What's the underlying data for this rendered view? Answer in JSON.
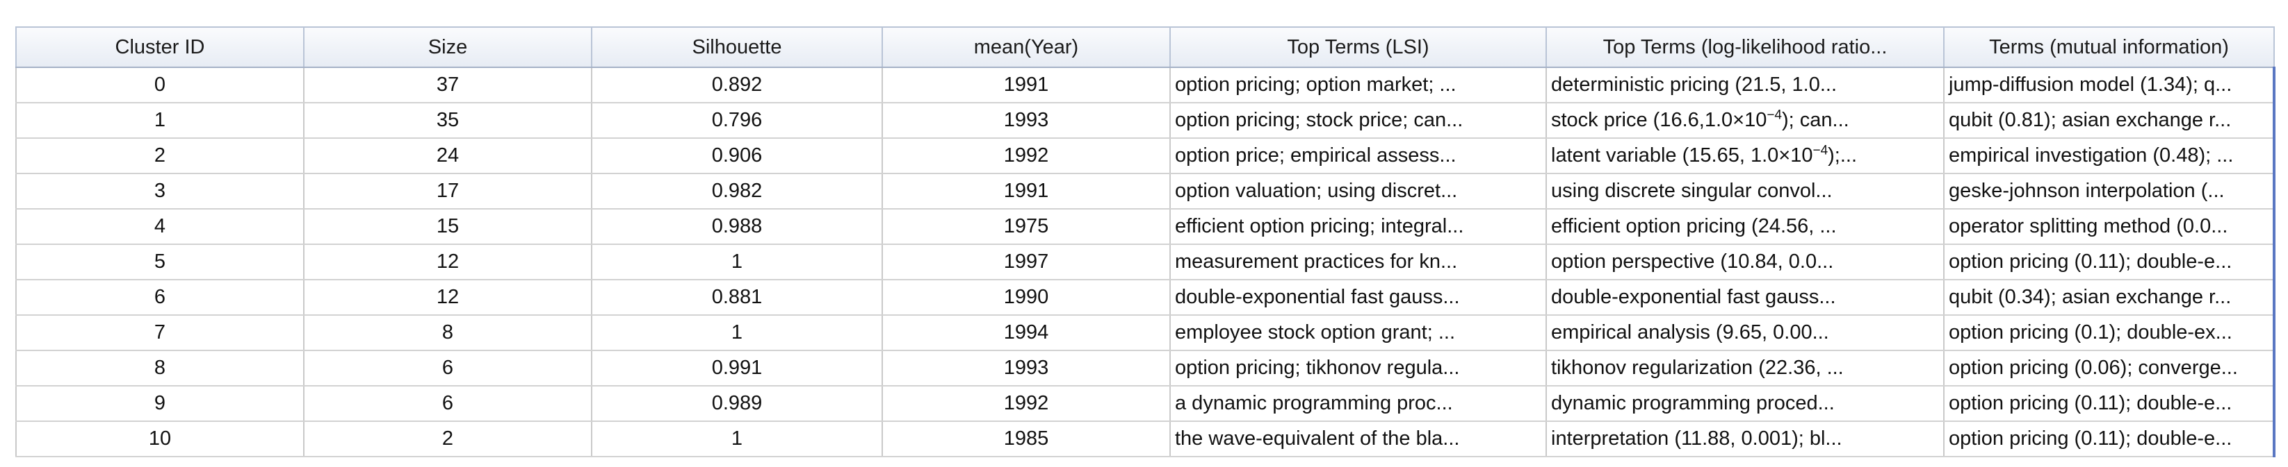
{
  "columns": [
    "Cluster ID",
    "Size",
    "Silhouette",
    "mean(Year)",
    "Top Terms (LSI)",
    "Top Terms (log-likelihood ratio...",
    "Terms (mutual information)"
  ],
  "rows": [
    {
      "id": "0",
      "size": "37",
      "silhouette": "0.892",
      "year": "1991",
      "lsi": "option pricing; option market; ...",
      "llr": "deterministic pricing (21.5, 1.0...",
      "mi": "jump-diffusion model (1.34); q..."
    },
    {
      "id": "1",
      "size": "35",
      "silhouette": "0.796",
      "year": "1993",
      "lsi": "option pricing; stock price; can...",
      "llr_pre": "stock price (16.6,1.0×10",
      "llr_sup": "−4",
      "llr_post": "); can...",
      "mi": "qubit (0.81); asian exchange r..."
    },
    {
      "id": "2",
      "size": "24",
      "silhouette": "0.906",
      "year": "1992",
      "lsi": "option price; empirical assess...",
      "llr_pre": "latent variable (15.65, 1.0×10",
      "llr_sup": "−4",
      "llr_post": ");...",
      "mi": "empirical investigation (0.48); ..."
    },
    {
      "id": "3",
      "size": "17",
      "silhouette": "0.982",
      "year": "1991",
      "lsi": "option valuation; using discret...",
      "llr": "using discrete singular convol...",
      "mi": "geske-johnson interpolation (..."
    },
    {
      "id": "4",
      "size": "15",
      "silhouette": "0.988",
      "year": "1975",
      "lsi": "efficient option pricing; integral...",
      "llr": "efficient option pricing (24.56, ...",
      "mi": "operator splitting method (0.0..."
    },
    {
      "id": "5",
      "size": "12",
      "silhouette": "1",
      "year": "1997",
      "lsi": "measurement practices for kn...",
      "llr": "option perspective (10.84, 0.0...",
      "mi": "option pricing (0.11); double-e..."
    },
    {
      "id": "6",
      "size": "12",
      "silhouette": "0.881",
      "year": "1990",
      "lsi": "double-exponential fast gauss...",
      "llr": "double-exponential fast gauss...",
      "mi": "qubit (0.34); asian exchange r..."
    },
    {
      "id": "7",
      "size": "8",
      "silhouette": "1",
      "year": "1994",
      "lsi": "employee stock option grant; ...",
      "llr": "empirical analysis (9.65, 0.00...",
      "mi": "option pricing (0.1); double-ex..."
    },
    {
      "id": "8",
      "size": "6",
      "silhouette": "0.991",
      "year": "1993",
      "lsi": "option pricing; tikhonov regula...",
      "llr": "tikhonov regularization (22.36, ...",
      "mi": "option pricing (0.06); converge..."
    },
    {
      "id": "9",
      "size": "6",
      "silhouette": "0.989",
      "year": "1992",
      "lsi": "a dynamic programming proc...",
      "llr": "dynamic programming proced...",
      "mi": "option pricing (0.11); double-e..."
    },
    {
      "id": "10",
      "size": "2",
      "silhouette": "1",
      "year": "1985",
      "lsi": "the wave-equivalent of the bla...",
      "llr": "interpretation (11.88, 0.001); bl...",
      "mi": "option pricing (0.11); double-e..."
    }
  ]
}
